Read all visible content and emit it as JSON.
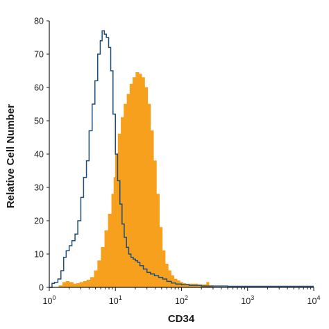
{
  "chart_data": {
    "type": "area",
    "title": "",
    "xlabel": "CD34",
    "ylabel": "Relative Cell Number",
    "xscale": "log",
    "xlim": [
      1,
      10000
    ],
    "ylim": [
      0,
      80
    ],
    "grid": false,
    "x_ticks": [
      {
        "value": 1,
        "base": "10",
        "exp": "0"
      },
      {
        "value": 10,
        "base": "10",
        "exp": "1"
      },
      {
        "value": 100,
        "base": "10",
        "exp": "2"
      },
      {
        "value": 1000,
        "base": "10",
        "exp": "3"
      },
      {
        "value": 10000,
        "base": "10",
        "exp": "4"
      }
    ],
    "y_ticks": [
      0,
      10,
      20,
      30,
      40,
      50,
      60,
      70,
      80
    ],
    "series": [
      {
        "style": "filled",
        "color": "#F7A01E",
        "x": [
          1.2,
          1.4,
          1.6,
          1.8,
          2.0,
          2.3,
          2.6,
          2.9,
          3.3,
          3.7,
          4.2,
          4.8,
          5.4,
          6.1,
          6.9,
          7.8,
          8.8,
          9.5,
          10.0,
          11.0,
          12.2,
          13.5,
          15.0,
          16.6,
          18.4,
          20.4,
          22.6,
          25.0,
          27.7,
          30.7,
          34.0,
          37.7,
          41.7,
          46.2,
          51.2,
          56.7,
          62.8,
          69.6,
          77.1,
          85.4,
          94.6,
          105,
          116,
          129,
          143,
          158,
          175,
          194,
          215,
          240,
          260,
          300
        ],
        "y": [
          0,
          0.5,
          1.5,
          1.8,
          1.5,
          1.0,
          1.2,
          1.5,
          1.8,
          2.2,
          3.0,
          5.0,
          8.0,
          12.0,
          17.0,
          22.0,
          28.0,
          33.0,
          40.0,
          46.0,
          51.0,
          55.0,
          58.0,
          61.0,
          63.0,
          64.5,
          64.0,
          63.0,
          60.0,
          55.0,
          47.0,
          38.0,
          28.0,
          18.0,
          11.0,
          7.0,
          5.0,
          3.5,
          2.5,
          2.0,
          1.5,
          1.2,
          1.0,
          1.0,
          1.0,
          1.0,
          0.8,
          0.8,
          0.8,
          1.5,
          0.5,
          0
        ]
      },
      {
        "style": "outline",
        "color": "#1D4E7A",
        "x": [
          1.0,
          1.1,
          1.2,
          1.35,
          1.5,
          1.65,
          1.8,
          2.0,
          2.2,
          2.45,
          2.7,
          3.0,
          3.3,
          3.65,
          4.0,
          4.45,
          4.9,
          5.4,
          5.9,
          6.3,
          6.8,
          7.3,
          7.9,
          8.5,
          9.2,
          10.0,
          10.8,
          11.7,
          12.6,
          13.6,
          14.7,
          15.9,
          17.2,
          18.6,
          20.1,
          21.7,
          23.5,
          26.5,
          30.0,
          34.0,
          39.0,
          45.0,
          52.0,
          60.0,
          70.0,
          82.0,
          100,
          130,
          200,
          500,
          1000,
          3000,
          10000
        ],
        "y": [
          0,
          1.2,
          1.5,
          2.5,
          5.0,
          9.0,
          11.0,
          12.5,
          14.0,
          16.0,
          20.0,
          27.0,
          33.0,
          38.0,
          47.0,
          55.0,
          62.0,
          70.0,
          74.0,
          77.0,
          76.0,
          75.0,
          72.0,
          65.0,
          52.0,
          40.0,
          32.0,
          25.0,
          19.0,
          15.0,
          12.0,
          10.0,
          9.0,
          8.5,
          8.0,
          7.5,
          6.5,
          5.5,
          4.5,
          4.0,
          3.5,
          3.0,
          2.5,
          1.8,
          1.3,
          1.0,
          0.8,
          0.6,
          0.4,
          0.3,
          0.3,
          0.3,
          0.3
        ]
      }
    ]
  }
}
